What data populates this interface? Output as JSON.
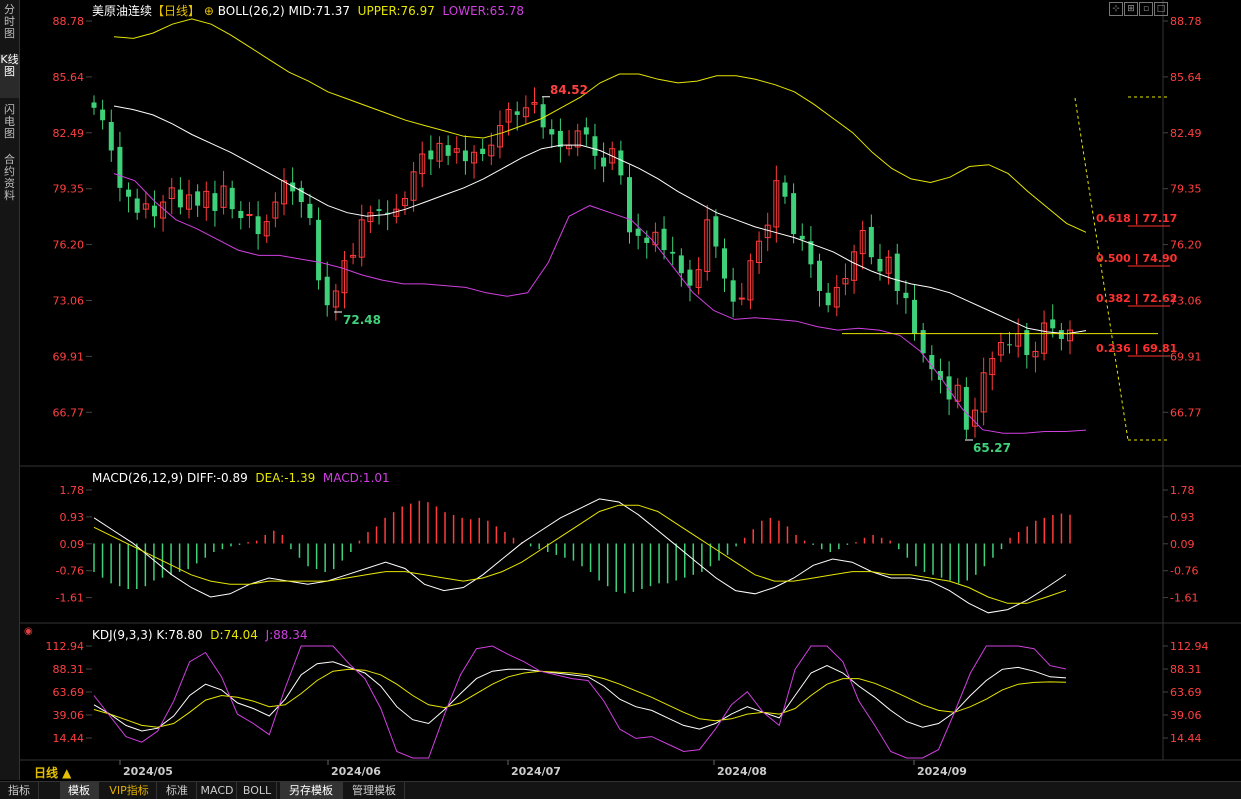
{
  "sidebar": {
    "items": [
      {
        "label": "分时图",
        "active": false
      },
      {
        "label": "K线图",
        "active": true
      },
      {
        "label": "闪电图",
        "active": false
      },
      {
        "label": "合约资料",
        "active": false
      }
    ]
  },
  "main_panel": {
    "title": "美原油连续",
    "period": "【日线】",
    "indicator": "BOLL(26,2)",
    "mid": "MID:71.37",
    "upper": "UPPER:76.97",
    "lower": "LOWER:65.78",
    "y_ticks": [
      "88.78",
      "85.64",
      "82.49",
      "79.35",
      "76.20",
      "73.06",
      "69.91",
      "66.77"
    ],
    "high_label": "84.52",
    "low_label_1": "72.48",
    "low_label_2": "65.27",
    "fib": [
      {
        "ratio": "0.618",
        "price": "77.17"
      },
      {
        "ratio": "0.500",
        "price": "74.90"
      },
      {
        "ratio": "0.382",
        "price": "72.62"
      },
      {
        "ratio": "0.236",
        "price": "69.81"
      }
    ]
  },
  "macd_panel": {
    "indicator": "MACD(26,12,9)",
    "diff": "DIFF:-0.89",
    "dea": "DEA:-1.39",
    "macd": "MACD:1.01",
    "y_ticks": [
      "1.78",
      "0.93",
      "0.09",
      "-0.76",
      "-1.61"
    ]
  },
  "kdj_panel": {
    "indicator": "KDJ(9,3,3)",
    "k": "K:78.80",
    "d": "D:74.04",
    "j": "J:88.34",
    "y_ticks": [
      "112.94",
      "88.31",
      "63.69",
      "39.06",
      "14.44"
    ]
  },
  "x_axis": {
    "period_label": "日线 ▲",
    "months": [
      "2024/05",
      "2024/06",
      "2024/07",
      "2024/08",
      "2024/09"
    ]
  },
  "bottom_tabs": [
    "指标",
    "模板",
    "VIP指标",
    "标准",
    "MACD",
    "BOLL",
    "另存模板",
    "管理模板"
  ],
  "colors": {
    "up": "#ff3b3b",
    "down": "#3fd17a",
    "mid": "#ffffff",
    "upper": "#e6e600",
    "lower": "#d040e0",
    "axis_label": "#ff4040",
    "macd_up": "#ff3b3b",
    "macd_down": "#3fd17a"
  }
}
